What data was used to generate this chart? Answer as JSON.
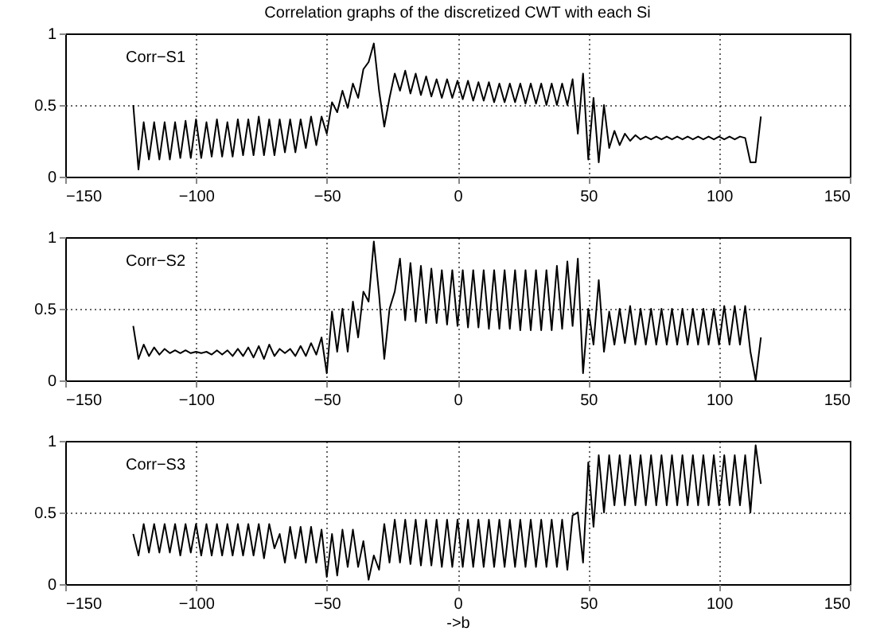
{
  "chart_data": [
    {
      "type": "line",
      "title": "Correlation graphs of the discretized CWT with each Si",
      "x": [
        -124,
        -122,
        -120,
        -118,
        -116,
        -114,
        -112,
        -110,
        -108,
        -106,
        -104,
        -102,
        -100,
        -98,
        -96,
        -94,
        -92,
        -90,
        -88,
        -86,
        -84,
        -82,
        -80,
        -78,
        -76,
        -74,
        -72,
        -70,
        -68,
        -66,
        -64,
        -62,
        -60,
        -58,
        -56,
        -54,
        -52,
        -50,
        -48,
        -46,
        -44,
        -42,
        -40,
        -38,
        -36,
        -34,
        -32,
        -30,
        -28,
        -26,
        -24,
        -22,
        -20,
        -18,
        -16,
        -14,
        -12,
        -10,
        -8,
        -6,
        -4,
        -2,
        0,
        2,
        4,
        6,
        8,
        10,
        12,
        14,
        16,
        18,
        20,
        22,
        24,
        26,
        28,
        30,
        32,
        34,
        36,
        38,
        40,
        42,
        44,
        46,
        48,
        50,
        52,
        54,
        56,
        58,
        60,
        62,
        64,
        66,
        68,
        70,
        72,
        74,
        76,
        78,
        80,
        82,
        84,
        86,
        88,
        90,
        92,
        94,
        96,
        98,
        100,
        102,
        104,
        106,
        108,
        110,
        112,
        114,
        116
      ],
      "series": [
        {
          "name": "Corr−S1",
          "color": "#000000",
          "values": [
            0.5,
            0.05,
            0.38,
            0.12,
            0.38,
            0.12,
            0.38,
            0.12,
            0.38,
            0.13,
            0.39,
            0.13,
            0.4,
            0.13,
            0.38,
            0.14,
            0.4,
            0.14,
            0.38,
            0.14,
            0.4,
            0.15,
            0.4,
            0.15,
            0.42,
            0.15,
            0.4,
            0.15,
            0.4,
            0.17,
            0.4,
            0.17,
            0.4,
            0.2,
            0.42,
            0.22,
            0.42,
            0.3,
            0.52,
            0.45,
            0.6,
            0.48,
            0.65,
            0.55,
            0.75,
            0.8,
            0.93,
            0.6,
            0.35,
            0.55,
            0.72,
            0.6,
            0.74,
            0.58,
            0.72,
            0.57,
            0.7,
            0.56,
            0.68,
            0.55,
            0.68,
            0.55,
            0.67,
            0.54,
            0.67,
            0.53,
            0.66,
            0.53,
            0.66,
            0.52,
            0.65,
            0.52,
            0.65,
            0.52,
            0.65,
            0.51,
            0.65,
            0.51,
            0.65,
            0.5,
            0.65,
            0.5,
            0.65,
            0.5,
            0.68,
            0.3,
            0.72,
            0.12,
            0.55,
            0.1,
            0.5,
            0.2,
            0.32,
            0.22,
            0.3,
            0.25,
            0.29,
            0.26,
            0.28,
            0.26,
            0.28,
            0.26,
            0.28,
            0.26,
            0.28,
            0.26,
            0.28,
            0.26,
            0.28,
            0.26,
            0.28,
            0.26,
            0.28,
            0.26,
            0.28,
            0.26,
            0.28,
            0.27,
            0.1,
            0.1,
            0.42
          ]
        }
      ],
      "xlim": [
        -150,
        150
      ],
      "xticks": [
        -150,
        -100,
        -50,
        0,
        50,
        100,
        150
      ],
      "ylim": [
        0,
        1
      ],
      "yticks": [
        0,
        0.5,
        1
      ],
      "grid": true
    },
    {
      "type": "line",
      "x": [
        -124,
        -122,
        -120,
        -118,
        -116,
        -114,
        -112,
        -110,
        -108,
        -106,
        -104,
        -102,
        -100,
        -98,
        -96,
        -94,
        -92,
        -90,
        -88,
        -86,
        -84,
        -82,
        -80,
        -78,
        -76,
        -74,
        -72,
        -70,
        -68,
        -66,
        -64,
        -62,
        -60,
        -58,
        -56,
        -54,
        -52,
        -50,
        -48,
        -46,
        -44,
        -42,
        -40,
        -38,
        -36,
        -34,
        -32,
        -30,
        -28,
        -26,
        -24,
        -22,
        -20,
        -18,
        -16,
        -14,
        -12,
        -10,
        -8,
        -6,
        -4,
        -2,
        0,
        2,
        4,
        6,
        8,
        10,
        12,
        14,
        16,
        18,
        20,
        22,
        24,
        26,
        28,
        30,
        32,
        34,
        36,
        38,
        40,
        42,
        44,
        46,
        48,
        50,
        52,
        54,
        56,
        58,
        60,
        62,
        64,
        66,
        68,
        70,
        72,
        74,
        76,
        78,
        80,
        82,
        84,
        86,
        88,
        90,
        92,
        94,
        96,
        98,
        100,
        102,
        104,
        106,
        108,
        110,
        112,
        114,
        116
      ],
      "series": [
        {
          "name": "Corr−S2",
          "color": "#000000",
          "values": [
            0.38,
            0.15,
            0.25,
            0.17,
            0.23,
            0.18,
            0.22,
            0.19,
            0.21,
            0.19,
            0.21,
            0.19,
            0.2,
            0.19,
            0.2,
            0.18,
            0.21,
            0.18,
            0.21,
            0.17,
            0.22,
            0.17,
            0.23,
            0.16,
            0.24,
            0.15,
            0.25,
            0.17,
            0.22,
            0.19,
            0.22,
            0.17,
            0.24,
            0.17,
            0.26,
            0.18,
            0.3,
            0.05,
            0.48,
            0.2,
            0.5,
            0.2,
            0.55,
            0.3,
            0.62,
            0.55,
            0.97,
            0.6,
            0.15,
            0.5,
            0.62,
            0.85,
            0.42,
            0.82,
            0.41,
            0.8,
            0.4,
            0.78,
            0.4,
            0.77,
            0.39,
            0.77,
            0.38,
            0.77,
            0.37,
            0.77,
            0.37,
            0.77,
            0.36,
            0.77,
            0.36,
            0.77,
            0.36,
            0.77,
            0.35,
            0.77,
            0.35,
            0.77,
            0.35,
            0.77,
            0.35,
            0.8,
            0.36,
            0.83,
            0.38,
            0.85,
            0.05,
            0.5,
            0.25,
            0.7,
            0.2,
            0.48,
            0.25,
            0.5,
            0.26,
            0.52,
            0.25,
            0.5,
            0.25,
            0.5,
            0.25,
            0.5,
            0.25,
            0.5,
            0.25,
            0.5,
            0.25,
            0.5,
            0.25,
            0.5,
            0.25,
            0.5,
            0.25,
            0.52,
            0.25,
            0.52,
            0.25,
            0.52,
            0.2,
            0,
            0.3
          ]
        }
      ],
      "xlim": [
        -150,
        150
      ],
      "xticks": [
        -150,
        -100,
        -50,
        0,
        50,
        100,
        150
      ],
      "ylim": [
        0,
        1
      ],
      "yticks": [
        0,
        0.5,
        1
      ],
      "grid": true
    },
    {
      "type": "line",
      "xlabel": "->b",
      "x": [
        -124,
        -122,
        -120,
        -118,
        -116,
        -114,
        -112,
        -110,
        -108,
        -106,
        -104,
        -102,
        -100,
        -98,
        -96,
        -94,
        -92,
        -90,
        -88,
        -86,
        -84,
        -82,
        -80,
        -78,
        -76,
        -74,
        -72,
        -70,
        -68,
        -66,
        -64,
        -62,
        -60,
        -58,
        -56,
        -54,
        -52,
        -50,
        -48,
        -46,
        -44,
        -42,
        -40,
        -38,
        -36,
        -34,
        -32,
        -30,
        -28,
        -26,
        -24,
        -22,
        -20,
        -18,
        -16,
        -14,
        -12,
        -10,
        -8,
        -6,
        -4,
        -2,
        0,
        2,
        4,
        6,
        8,
        10,
        12,
        14,
        16,
        18,
        20,
        22,
        24,
        26,
        28,
        30,
        32,
        34,
        36,
        38,
        40,
        42,
        44,
        46,
        48,
        50,
        52,
        54,
        56,
        58,
        60,
        62,
        64,
        66,
        68,
        70,
        72,
        74,
        76,
        78,
        80,
        82,
        84,
        86,
        88,
        90,
        92,
        94,
        96,
        98,
        100,
        102,
        104,
        106,
        108,
        110,
        112,
        114,
        116
      ],
      "series": [
        {
          "name": "Corr−S3",
          "color": "#000000",
          "values": [
            0.35,
            0.2,
            0.42,
            0.22,
            0.42,
            0.22,
            0.42,
            0.22,
            0.42,
            0.2,
            0.42,
            0.22,
            0.42,
            0.2,
            0.42,
            0.2,
            0.42,
            0.2,
            0.42,
            0.2,
            0.42,
            0.2,
            0.42,
            0.2,
            0.42,
            0.18,
            0.42,
            0.25,
            0.35,
            0.15,
            0.4,
            0.18,
            0.4,
            0.15,
            0.4,
            0.15,
            0.38,
            0.05,
            0.35,
            0.06,
            0.38,
            0.12,
            0.38,
            0.12,
            0.3,
            0.03,
            0.2,
            0.1,
            0.42,
            0.15,
            0.45,
            0.15,
            0.45,
            0.14,
            0.45,
            0.13,
            0.45,
            0.13,
            0.45,
            0.12,
            0.45,
            0.12,
            0.45,
            0.12,
            0.45,
            0.12,
            0.45,
            0.12,
            0.45,
            0.12,
            0.45,
            0.12,
            0.45,
            0.12,
            0.45,
            0.12,
            0.45,
            0.12,
            0.45,
            0.12,
            0.45,
            0.12,
            0.45,
            0.1,
            0.48,
            0.5,
            0.15,
            0.85,
            0.4,
            0.9,
            0.5,
            0.9,
            0.55,
            0.9,
            0.55,
            0.9,
            0.55,
            0.9,
            0.55,
            0.9,
            0.55,
            0.9,
            0.55,
            0.9,
            0.55,
            0.9,
            0.55,
            0.9,
            0.55,
            0.9,
            0.55,
            0.9,
            0.55,
            0.9,
            0.55,
            0.9,
            0.55,
            0.9,
            0.5,
            0.97,
            0.7
          ]
        }
      ],
      "xlim": [
        -150,
        150
      ],
      "xticks": [
        -150,
        -100,
        -50,
        0,
        50,
        100,
        150
      ],
      "ylim": [
        0,
        1
      ],
      "yticks": [
        0,
        0.5,
        1
      ],
      "grid": true
    }
  ]
}
